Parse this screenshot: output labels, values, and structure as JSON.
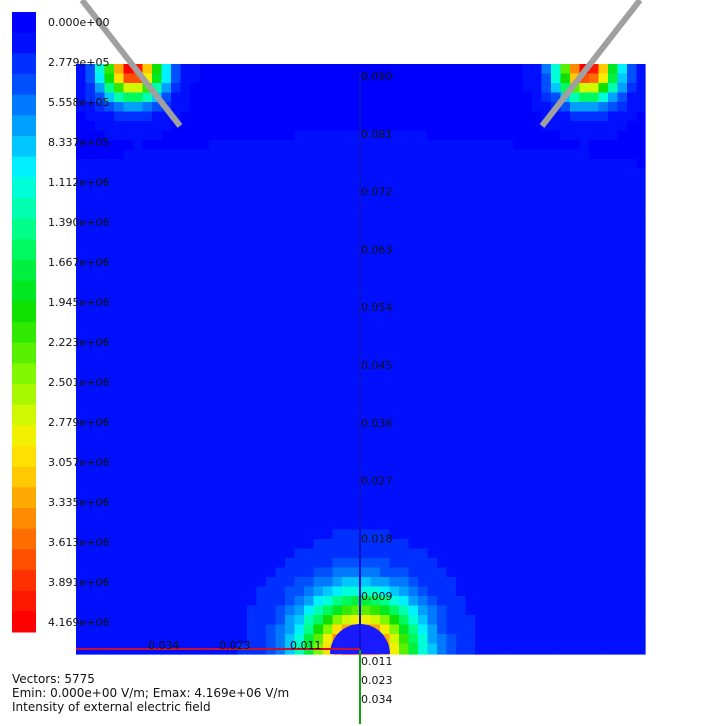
{
  "chart_data": {
    "type": "heatmap",
    "title": "Intensity of external electric field",
    "colorbar": {
      "labels": [
        "0.000e+00",
        "2.779e+05",
        "5.558e+05",
        "8.337e+05",
        "1.112e+06",
        "1.390e+06",
        "1.667e+06",
        "1.945e+06",
        "2.223e+06",
        "2.501e+06",
        "2.779e+06",
        "3.057e+06",
        "3.335e+06",
        "3.613e+06",
        "3.891e+06",
        "4.169e+06"
      ],
      "colors": [
        "#0000ff",
        "#0010ff",
        "#0030ff",
        "#0050ff",
        "#0078ff",
        "#00a0ff",
        "#00c8ff",
        "#00f0ff",
        "#00ffd8",
        "#00ffb0",
        "#00ff88",
        "#00f860",
        "#00f040",
        "#00e820",
        "#10e000",
        "#30e800",
        "#58f000",
        "#80f800",
        "#a8f800",
        "#d0f800",
        "#f0f000",
        "#ffe000",
        "#ffc800",
        "#ffaa00",
        "#ff8c00",
        "#ff6e00",
        "#ff5000",
        "#ff3000",
        "#ff1800",
        "#ff0000"
      ],
      "min": 0,
      "max": 4169000
    },
    "hot_spots": [
      {
        "x": -0.04,
        "y": 0.091,
        "intensity": 1.0,
        "spread": 0.0035
      },
      {
        "x": 0.04,
        "y": 0.091,
        "intensity": 1.0,
        "spread": 0.0035
      },
      {
        "x": 0.0,
        "y": 0.0,
        "intensity": 1.0,
        "spread": 0.0065
      }
    ],
    "vertical_axis": {
      "ticks": [
        "0.090",
        "0.081",
        "0.072",
        "0.063",
        "0.054",
        "0.045",
        "0.036",
        "0.027",
        "0.018",
        "0.009"
      ],
      "values": [
        0.09,
        0.081,
        0.072,
        0.063,
        0.054,
        0.045,
        0.036,
        0.027,
        0.018,
        0.009
      ],
      "below_ticks": [
        "0.011",
        "0.023",
        "0.034"
      ],
      "color": "#1010c8"
    },
    "horizontal_axis": {
      "ticks": [
        "0.034",
        "0.023",
        "0.011"
      ],
      "color": "#c8102e"
    },
    "second_axis_color": "#10a010",
    "wire_color": "#a0a0a0"
  },
  "footer": {
    "vectors": "Vectors: 5775",
    "emin_emax": "Emin: 0.000e+00 V/m; Emax: 4.169e+06 V/m",
    "caption": "Intensity of external electric field"
  }
}
